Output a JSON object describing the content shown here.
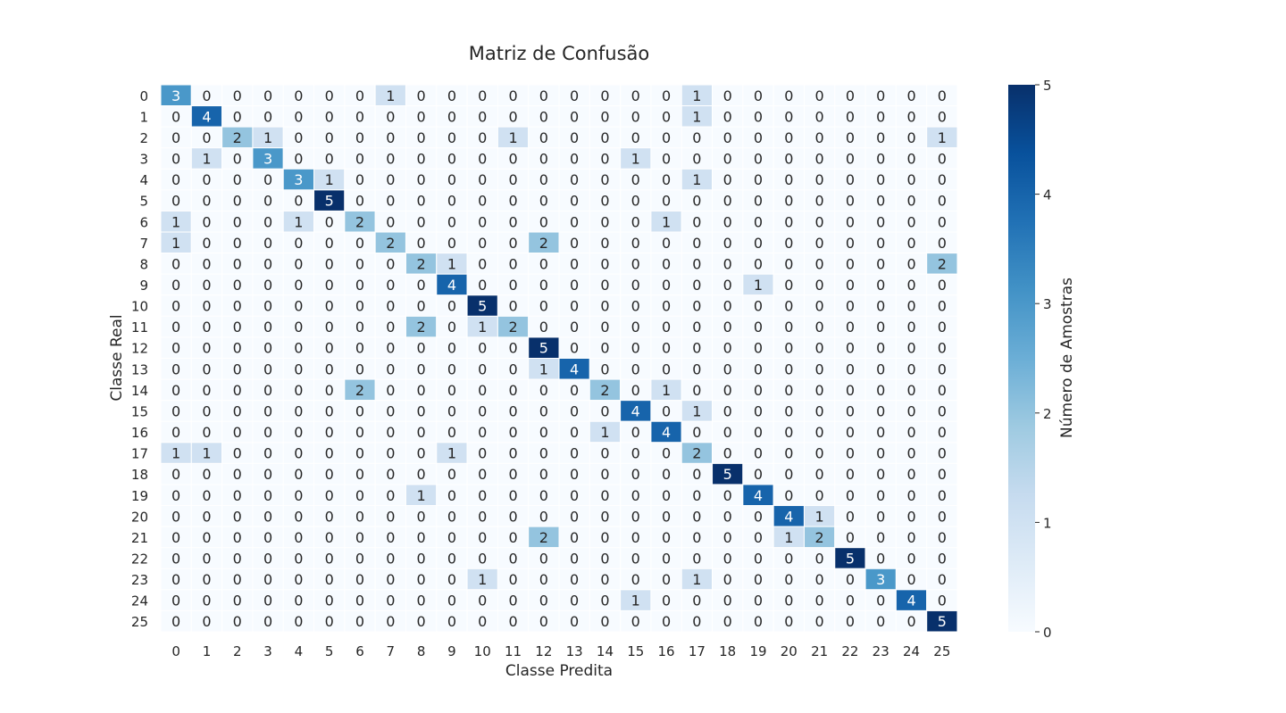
{
  "chart_data": {
    "type": "heatmap",
    "title": "Matriz de Confusão",
    "xlabel": "Classe Predita",
    "ylabel": "Classe Real",
    "x_categories": [
      "0",
      "1",
      "2",
      "3",
      "4",
      "5",
      "6",
      "7",
      "8",
      "9",
      "10",
      "11",
      "12",
      "13",
      "14",
      "15",
      "16",
      "17",
      "18",
      "19",
      "20",
      "21",
      "22",
      "23",
      "24",
      "25"
    ],
    "y_categories": [
      "0",
      "1",
      "2",
      "3",
      "4",
      "5",
      "6",
      "7",
      "8",
      "9",
      "10",
      "11",
      "12",
      "13",
      "14",
      "15",
      "16",
      "17",
      "18",
      "19",
      "20",
      "21",
      "22",
      "23",
      "24",
      "25"
    ],
    "values": [
      [
        3,
        0,
        0,
        0,
        0,
        0,
        0,
        1,
        0,
        0,
        0,
        0,
        0,
        0,
        0,
        0,
        0,
        1,
        0,
        0,
        0,
        0,
        0,
        0,
        0,
        0
      ],
      [
        0,
        4,
        0,
        0,
        0,
        0,
        0,
        0,
        0,
        0,
        0,
        0,
        0,
        0,
        0,
        0,
        0,
        1,
        0,
        0,
        0,
        0,
        0,
        0,
        0,
        0
      ],
      [
        0,
        0,
        2,
        1,
        0,
        0,
        0,
        0,
        0,
        0,
        0,
        1,
        0,
        0,
        0,
        0,
        0,
        0,
        0,
        0,
        0,
        0,
        0,
        0,
        0,
        1
      ],
      [
        0,
        1,
        0,
        3,
        0,
        0,
        0,
        0,
        0,
        0,
        0,
        0,
        0,
        0,
        0,
        1,
        0,
        0,
        0,
        0,
        0,
        0,
        0,
        0,
        0,
        0
      ],
      [
        0,
        0,
        0,
        0,
        3,
        1,
        0,
        0,
        0,
        0,
        0,
        0,
        0,
        0,
        0,
        0,
        0,
        1,
        0,
        0,
        0,
        0,
        0,
        0,
        0,
        0
      ],
      [
        0,
        0,
        0,
        0,
        0,
        5,
        0,
        0,
        0,
        0,
        0,
        0,
        0,
        0,
        0,
        0,
        0,
        0,
        0,
        0,
        0,
        0,
        0,
        0,
        0,
        0
      ],
      [
        1,
        0,
        0,
        0,
        1,
        0,
        2,
        0,
        0,
        0,
        0,
        0,
        0,
        0,
        0,
        0,
        1,
        0,
        0,
        0,
        0,
        0,
        0,
        0,
        0,
        0
      ],
      [
        1,
        0,
        0,
        0,
        0,
        0,
        0,
        2,
        0,
        0,
        0,
        0,
        2,
        0,
        0,
        0,
        0,
        0,
        0,
        0,
        0,
        0,
        0,
        0,
        0,
        0
      ],
      [
        0,
        0,
        0,
        0,
        0,
        0,
        0,
        0,
        2,
        1,
        0,
        0,
        0,
        0,
        0,
        0,
        0,
        0,
        0,
        0,
        0,
        0,
        0,
        0,
        0,
        2
      ],
      [
        0,
        0,
        0,
        0,
        0,
        0,
        0,
        0,
        0,
        4,
        0,
        0,
        0,
        0,
        0,
        0,
        0,
        0,
        0,
        1,
        0,
        0,
        0,
        0,
        0,
        0
      ],
      [
        0,
        0,
        0,
        0,
        0,
        0,
        0,
        0,
        0,
        0,
        5,
        0,
        0,
        0,
        0,
        0,
        0,
        0,
        0,
        0,
        0,
        0,
        0,
        0,
        0,
        0
      ],
      [
        0,
        0,
        0,
        0,
        0,
        0,
        0,
        0,
        2,
        0,
        1,
        2,
        0,
        0,
        0,
        0,
        0,
        0,
        0,
        0,
        0,
        0,
        0,
        0,
        0,
        0
      ],
      [
        0,
        0,
        0,
        0,
        0,
        0,
        0,
        0,
        0,
        0,
        0,
        0,
        5,
        0,
        0,
        0,
        0,
        0,
        0,
        0,
        0,
        0,
        0,
        0,
        0,
        0
      ],
      [
        0,
        0,
        0,
        0,
        0,
        0,
        0,
        0,
        0,
        0,
        0,
        0,
        1,
        4,
        0,
        0,
        0,
        0,
        0,
        0,
        0,
        0,
        0,
        0,
        0,
        0
      ],
      [
        0,
        0,
        0,
        0,
        0,
        0,
        2,
        0,
        0,
        0,
        0,
        0,
        0,
        0,
        2,
        0,
        1,
        0,
        0,
        0,
        0,
        0,
        0,
        0,
        0,
        0
      ],
      [
        0,
        0,
        0,
        0,
        0,
        0,
        0,
        0,
        0,
        0,
        0,
        0,
        0,
        0,
        0,
        4,
        0,
        1,
        0,
        0,
        0,
        0,
        0,
        0,
        0,
        0
      ],
      [
        0,
        0,
        0,
        0,
        0,
        0,
        0,
        0,
        0,
        0,
        0,
        0,
        0,
        0,
        1,
        0,
        4,
        0,
        0,
        0,
        0,
        0,
        0,
        0,
        0,
        0
      ],
      [
        1,
        1,
        0,
        0,
        0,
        0,
        0,
        0,
        0,
        1,
        0,
        0,
        0,
        0,
        0,
        0,
        0,
        2,
        0,
        0,
        0,
        0,
        0,
        0,
        0,
        0
      ],
      [
        0,
        0,
        0,
        0,
        0,
        0,
        0,
        0,
        0,
        0,
        0,
        0,
        0,
        0,
        0,
        0,
        0,
        0,
        5,
        0,
        0,
        0,
        0,
        0,
        0,
        0
      ],
      [
        0,
        0,
        0,
        0,
        0,
        0,
        0,
        0,
        1,
        0,
        0,
        0,
        0,
        0,
        0,
        0,
        0,
        0,
        0,
        4,
        0,
        0,
        0,
        0,
        0,
        0
      ],
      [
        0,
        0,
        0,
        0,
        0,
        0,
        0,
        0,
        0,
        0,
        0,
        0,
        0,
        0,
        0,
        0,
        0,
        0,
        0,
        0,
        4,
        1,
        0,
        0,
        0,
        0
      ],
      [
        0,
        0,
        0,
        0,
        0,
        0,
        0,
        0,
        0,
        0,
        0,
        0,
        2,
        0,
        0,
        0,
        0,
        0,
        0,
        0,
        1,
        2,
        0,
        0,
        0,
        0
      ],
      [
        0,
        0,
        0,
        0,
        0,
        0,
        0,
        0,
        0,
        0,
        0,
        0,
        0,
        0,
        0,
        0,
        0,
        0,
        0,
        0,
        0,
        0,
        5,
        0,
        0,
        0
      ],
      [
        0,
        0,
        0,
        0,
        0,
        0,
        0,
        0,
        0,
        0,
        1,
        0,
        0,
        0,
        0,
        0,
        0,
        1,
        0,
        0,
        0,
        0,
        0,
        3,
        0,
        0
      ],
      [
        0,
        0,
        0,
        0,
        0,
        0,
        0,
        0,
        0,
        0,
        0,
        0,
        0,
        0,
        0,
        1,
        0,
        0,
        0,
        0,
        0,
        0,
        0,
        0,
        4,
        0
      ],
      [
        0,
        0,
        0,
        0,
        0,
        0,
        0,
        0,
        0,
        0,
        0,
        0,
        0,
        0,
        0,
        0,
        0,
        0,
        0,
        0,
        0,
        0,
        0,
        0,
        0,
        5
      ]
    ],
    "colorbar": {
      "label": "Número de Amostras",
      "range": [
        0,
        5
      ],
      "ticks": [
        0,
        1,
        2,
        3,
        4,
        5
      ],
      "colormap": "Blues"
    },
    "grid": false
  }
}
